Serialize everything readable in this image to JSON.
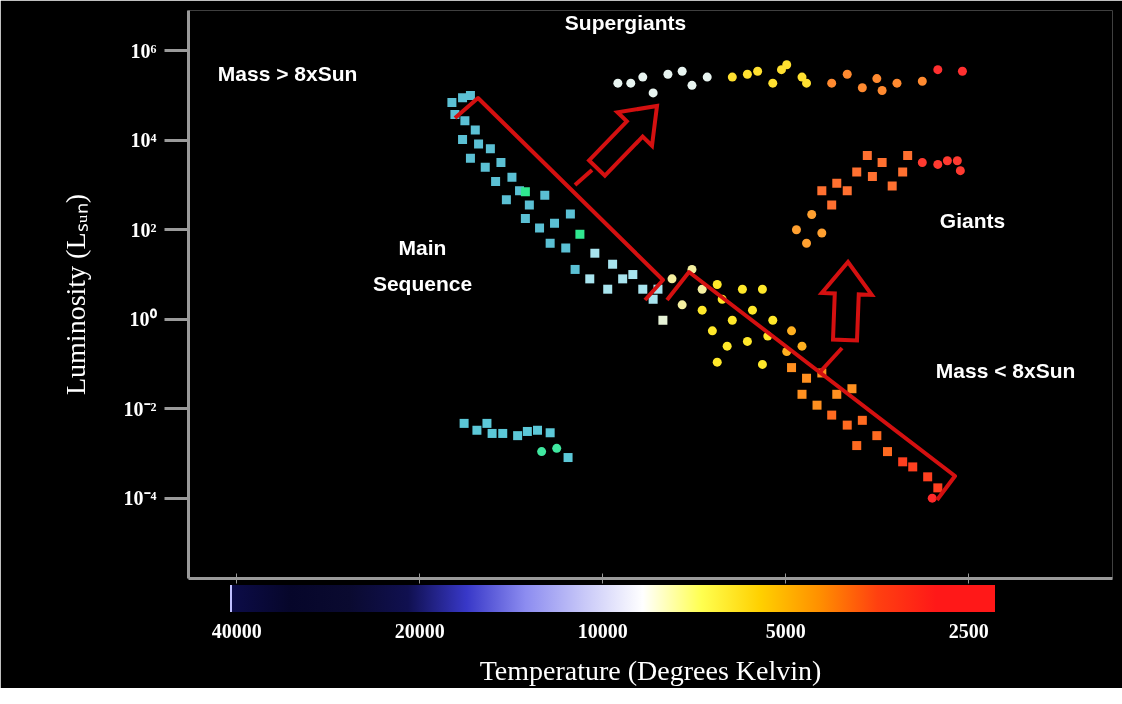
{
  "chart_data": {
    "type": "scatter",
    "xlabel": "Temperature (Degrees Kelvin)",
    "ylabel": "Luminosity (Lₛᵤₙ)",
    "log": "xy",
    "grid": false,
    "xlim": [
      48000,
      1450
    ],
    "ylim": [
      1.6e-06,
      8000000
    ],
    "xticks": [
      40000,
      20000,
      10000,
      5000,
      2500
    ],
    "yticks": [
      {
        "value": 1000000,
        "label": "10⁶"
      },
      {
        "value": 10000,
        "label": "10⁴"
      },
      {
        "value": 100,
        "label": "10²"
      },
      {
        "value": 1,
        "label": "10⁰"
      },
      {
        "value": 0.01,
        "label": "10⁻²"
      },
      {
        "value": 0.0001,
        "label": "10⁻⁴"
      }
    ],
    "annotations": [
      "Supergiants",
      "Mass >  8xSun",
      "Main\nSequence",
      "Giants",
      "Mass <  8xSun"
    ],
    "series": [
      {
        "color": "#5bc0d4",
        "marker": "square",
        "x": [
          17700,
          17000,
          16500,
          17500,
          16850,
          16200,
          17000,
          16000,
          15300,
          16500,
          15600,
          14700,
          15000,
          14100,
          13700,
          14400,
          13200,
          12450,
          13400,
          12700,
          12000,
          11300,
          12200,
          11500,
          11100
        ],
        "values": [
          70000,
          90000,
          100000,
          38000,
          27500,
          17000,
          10500,
          8300,
          6500,
          4000,
          2500,
          3200,
          1200,
          1500,
          750,
          470,
          360,
          590,
          180,
          110,
          140,
          225,
          50,
          39,
          13
        ]
      },
      {
        "color": "#30e890",
        "marker": "square",
        "x": [
          13400,
          10900
        ],
        "values": [
          710,
          80
        ]
      },
      {
        "color": "#a8e4ee",
        "marker": "square",
        "x": [
          10300,
          10500,
          9630,
          9270,
          9810,
          8920,
          8590,
          8110,
          8260
        ],
        "values": [
          30,
          8,
          17,
          8,
          4.7,
          10,
          4.7,
          4.7,
          2.8
        ]
      },
      {
        "color": "#e6f2d6",
        "marker": "square",
        "x": [
          7960
        ],
        "values": [
          0.95
        ]
      },
      {
        "color": "#f5f0a0",
        "marker": "circle",
        "x": [
          7690,
          7130,
          7400,
          6860
        ],
        "values": [
          8,
          13,
          2.1,
          4.7
        ]
      },
      {
        "color": "#ffe82a",
        "marker": "circle",
        "x": [
          6480,
          6860,
          6360,
          5890,
          5460,
          6600,
          6120,
          5670,
          5250,
          6240,
          5780,
          5350,
          6480,
          5460
        ],
        "values": [
          6,
          1.6,
          2.8,
          4.7,
          4.7,
          0.55,
          0.95,
          1.6,
          0.95,
          0.25,
          0.32,
          0.42,
          0.11,
          0.098
        ]
      },
      {
        "color": "#ffb020",
        "marker": "circle",
        "x": [
          4890,
          4980,
          4700
        ],
        "values": [
          0.55,
          0.19,
          0.25
        ]
      },
      {
        "color": "#ff9020",
        "marker": "square",
        "x": [
          4890,
          4620,
          4360,
          4700,
          4440,
          4120,
          3890
        ],
        "values": [
          0.083,
          0.048,
          0.063,
          0.021,
          0.012,
          0.021,
          0.028
        ]
      },
      {
        "color": "#ff6a20",
        "marker": "square",
        "x": [
          4200,
          3960,
          3740,
          3540,
          3820,
          3400
        ],
        "values": [
          0.0072,
          0.0043,
          0.0055,
          0.0025,
          0.0015,
          0.0011
        ]
      },
      {
        "color": "#ff4020",
        "marker": "square",
        "x": [
          3210,
          3090,
          2920,
          2810
        ],
        "values": [
          0.00065,
          0.0005,
          0.0003,
          0.00017
        ]
      },
      {
        "color": "#ff2a2a",
        "marker": "circle",
        "x": [
          2870
        ],
        "values": [
          0.0001
        ]
      },
      {
        "color": "#e8f4f0",
        "marker": "circle",
        "x": [
          9440,
          8990,
          8590,
          8260,
          7810,
          7400,
          7130,
          6730
        ],
        "values": [
          190000,
          190000,
          260000,
          115000,
          300000,
          350000,
          170000,
          260000
        ]
      },
      {
        "color": "#ffe030",
        "marker": "circle",
        "x": [
          6120,
          5780,
          5560,
          5250,
          5080,
          4980,
          4700,
          4620
        ],
        "values": [
          260000,
          300000,
          350000,
          190000,
          380000,
          490000,
          260000,
          190000
        ]
      },
      {
        "color": "#ff8a30",
        "marker": "circle",
        "x": [
          4200,
          3960,
          3740,
          3540,
          3470,
          3280,
          2980
        ],
        "values": [
          190000,
          300000,
          150000,
          240000,
          130000,
          190000,
          210000
        ]
      },
      {
        "color": "#ff3030",
        "marker": "circle",
        "x": [
          2810,
          2560
        ],
        "values": [
          380000,
          350000
        ]
      },
      {
        "color": "#ffa030",
        "marker": "circle",
        "x": [
          4800,
          4620,
          4360,
          4530
        ],
        "values": [
          100,
          50,
          85,
          220
        ]
      },
      {
        "color": "#ff7030",
        "marker": "square",
        "x": [
          4360,
          4200,
          4120,
          3960,
          3820,
          3670,
          3600,
          3470,
          3340,
          3210,
          3150
        ],
        "values": [
          750,
          360,
          1100,
          750,
          1950,
          4600,
          1550,
          3200,
          950,
          1950,
          4600
        ]
      },
      {
        "color": "#ff3a30",
        "marker": "circle",
        "x": [
          2980,
          2810,
          2710,
          2610,
          2580
        ],
        "values": [
          3200,
          2900,
          3500,
          3500,
          2100
        ]
      },
      {
        "color": "#5cc8d8",
        "marker": "square",
        "x": [
          16900,
          16100,
          15500,
          15200,
          14600,
          13800,
          13300,
          12800,
          12200,
          11400
        ],
        "values": [
          0.0047,
          0.0033,
          0.0047,
          0.0028,
          0.0028,
          0.0025,
          0.0031,
          0.0033,
          0.0029,
          0.00081
        ]
      },
      {
        "color": "#40e8a0",
        "marker": "circle",
        "x": [
          12600,
          11900
        ],
        "values": [
          0.0011,
          0.0013
        ]
      }
    ]
  }
}
